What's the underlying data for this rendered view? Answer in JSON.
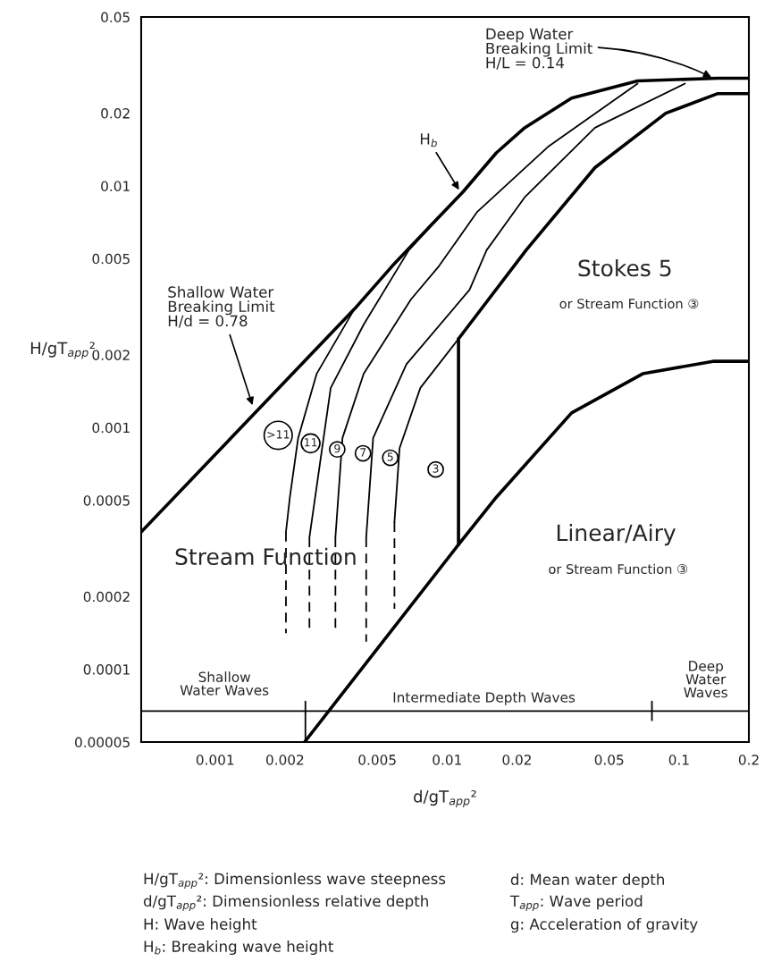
{
  "chart_data": {
    "type": "line",
    "log": "xy",
    "xlabel": "d/gT$_{app}$²",
    "ylabel": "H/gT$_{app}$²",
    "xlim": [
      0.00048,
      0.2
    ],
    "ylim": [
      5e-05,
      0.05
    ],
    "xticks": [
      0.001,
      0.002,
      0.005,
      0.01,
      0.02,
      0.05,
      0.1,
      0.2
    ],
    "yticks": [
      {
        "value": 5e-05,
        "label": "0.00005"
      },
      0.0001,
      0.0002,
      0.0005,
      0.001,
      0.002,
      0.005,
      0.01,
      0.02,
      0.05
    ],
    "series": [
      {
        "color": "#000000",
        "x": [
          0.00048,
          0.00398,
          0.0058,
          0.00841,
          0.0117,
          0.0163,
          0.0216,
          0.0344,
          0.0663,
          0.147,
          0.2
        ],
        "values": [
          0.00037,
          0.00309,
          0.00466,
          0.00678,
          0.00944,
          0.0137,
          0.0174,
          0.0231,
          0.0272,
          0.0279,
          0.0279
        ]
      },
      {
        "color": "#000000",
        "x": [
          0.00398,
          0.00274,
          0.00228,
          0.0021,
          0.00202
        ],
        "values": [
          0.00309,
          0.00167,
          0.000906,
          0.000515,
          0.00037
        ]
      },
      {
        "color": "#000000",
        "line_style": "dashed",
        "x": [
          0.00202,
          0.00202
        ],
        "values": [
          0.00037,
          0.000141
        ]
      },
      {
        "color": "#000000",
        "x": [
          0.00973,
          0.00684,
          0.00437,
          0.00315,
          0.00255
        ],
        "values": [
          0.00782,
          0.00542,
          0.00267,
          0.00146,
          0.000351
        ]
      },
      {
        "color": "#000000",
        "line_style": "dashed",
        "x": [
          0.00255,
          0.00255
        ],
        "values": [
          0.000351,
          0.000145
        ]
      },
      {
        "color": "#000000",
        "x": [
          0.0663,
          0.0272,
          0.0135,
          0.00923,
          0.00698,
          0.00437,
          0.00354,
          0.0033
        ],
        "values": [
          0.0265,
          0.0145,
          0.00782,
          0.00466,
          0.00339,
          0.00167,
          0.000906,
          0.000351
        ]
      },
      {
        "color": "#000000",
        "line_style": "dashed",
        "x": [
          0.0033,
          0.0033
        ],
        "values": [
          0.000351,
          0.000145
        ]
      },
      {
        "color": "#000000",
        "x": [
          0.106,
          0.0434,
          0.0216,
          0.0148,
          0.0125,
          0.00668,
          0.0048,
          0.00448
        ],
        "values": [
          0.0265,
          0.0174,
          0.00897,
          0.00542,
          0.00372,
          0.00183,
          0.000906,
          0.000351
        ]
      },
      {
        "color": "#000000",
        "line_style": "dashed",
        "x": [
          0.00448,
          0.00448
        ],
        "values": [
          0.000351,
          0.00013
        ]
      },
      {
        "color": "#000000",
        "x": [
          0.2,
          0.147,
          0.0877,
          0.0434,
          0.0219,
          0.0112
        ],
        "values": [
          0.0241,
          0.0241,
          0.02,
          0.0119,
          0.00542,
          0.00233
        ]
      },
      {
        "color": "#000000",
        "x": [
          0.0112,
          0.00767,
          0.00624,
          0.00593
        ],
        "values": [
          0.00233,
          0.00146,
          0.000822,
          0.000406
        ]
      },
      {
        "color": "#000000",
        "line_style": "dashed",
        "x": [
          0.00593,
          0.00593
        ],
        "values": [
          0.000406,
          0.000178
        ]
      },
      {
        "color": "#000000",
        "x": [
          0.0112,
          0.0112
        ],
        "values": [
          0.00233,
          0.000328
        ]
      },
      {
        "color": "#000000",
        "x": [
          0.00243,
          0.0112,
          0.0163,
          0.0344,
          0.0697,
          0.14,
          0.2
        ],
        "values": [
          5e-05,
          0.000328,
          0.000515,
          0.00115,
          0.00167,
          0.00188,
          0.00188
        ]
      },
      {
        "color": "#000000",
        "x": [
          0.00048,
          0.2
        ],
        "values": [
          6.71e-05,
          6.71e-05
        ]
      },
      {
        "color": "#000000",
        "x": [
          0.00245,
          0.00245
        ],
        "values": [
          5e-05,
          7.35e-05
        ]
      },
      {
        "color": "#000000",
        "x": [
          0.0764,
          0.0764
        ],
        "values": [
          6.15e-05,
          7.35e-05
        ]
      }
    ],
    "annotations": [
      {
        "text": "Deep Water\nBreaking Limit\nH/L = 0.14",
        "x": 0.141,
        "y": 0.0279
      },
      {
        "text": "H$_{b}$",
        "x": 0.0114,
        "y": 0.00944
      },
      {
        "text": "Shallow Water\nBreaking Limit\nH/d = 0.78",
        "x": 0.00146,
        "y": 0.00121
      },
      "Stokes 5",
      "or Stream Function ③",
      "Linear/Airy",
      "or Stream Function ③",
      "Stream Function",
      {
        "text": ">11",
        "x": 0.00187,
        "y": 0.000929
      },
      {
        "text": "11",
        "x": 0.00258,
        "y": 0.000861
      },
      {
        "text": "9",
        "x": 0.00336,
        "y": 0.000812
      },
      {
        "text": "7",
        "x": 0.00434,
        "y": 0.000783
      },
      {
        "text": "5",
        "x": 0.00569,
        "y": 0.00075
      },
      {
        "text": "3",
        "x": 0.00893,
        "y": 0.000671
      },
      "Shallow\nWater Waves",
      "Intermediate Depth Waves",
      "Deep\nWater\nWaves",
      "H/gT$_{app}$²: Dimensionless wave steepness",
      "d/gT$_{app}$²: Dimensionless relative depth",
      "H: Wave height",
      "H$_{b}$: Breaking wave height",
      "d: Mean water depth",
      "T$_{app}$: Wave period",
      "g: Acceleration of gravity"
    ]
  }
}
